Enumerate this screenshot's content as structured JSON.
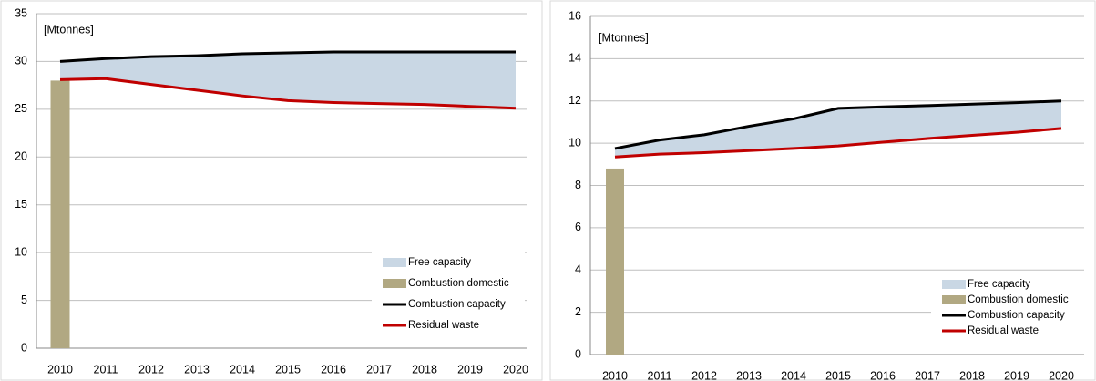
{
  "chart_data": [
    {
      "type": "combo",
      "annotation": "[Mtonnes]",
      "categories": [
        "2010",
        "2011",
        "2012",
        "2013",
        "2014",
        "2015",
        "2016",
        "2017",
        "2018",
        "2019",
        "2020"
      ],
      "ylim": [
        0,
        35
      ],
      "yticks": [
        0,
        5,
        10,
        15,
        20,
        25,
        30,
        35
      ],
      "grid": true,
      "legend": "lower right",
      "series": [
        {
          "name": "Free capacity",
          "type": "area",
          "stacked_on": "Residual waste",
          "color": "#c9d7e4",
          "values": [
            1.9,
            2.1,
            2.9,
            3.6,
            4.4,
            5.0,
            5.3,
            5.4,
            5.5,
            5.7,
            5.9
          ]
        },
        {
          "name": "Combustion domestic",
          "type": "bar",
          "color": "#b1a882",
          "values": [
            28,
            null,
            null,
            null,
            null,
            null,
            null,
            null,
            null,
            null,
            null
          ]
        },
        {
          "name": "Combustion capacity",
          "type": "line",
          "color": "#000000",
          "values": [
            30,
            30.3,
            30.5,
            30.6,
            30.8,
            30.9,
            31,
            31,
            31,
            31,
            31
          ]
        },
        {
          "name": "Residual waste",
          "type": "line",
          "color": "#c00000",
          "values": [
            28.1,
            28.2,
            27.6,
            27,
            26.4,
            25.9,
            25.7,
            25.6,
            25.5,
            25.3,
            25.1
          ]
        }
      ]
    },
    {
      "type": "combo",
      "annotation": "[Mtonnes]",
      "categories": [
        "2010",
        "2011",
        "2012",
        "2013",
        "2014",
        "2015",
        "2016",
        "2017",
        "2018",
        "2019",
        "2020"
      ],
      "ylim": [
        0,
        16
      ],
      "yticks": [
        0,
        2,
        4,
        6,
        8,
        10,
        12,
        14,
        16
      ],
      "grid": true,
      "legend": "lower right",
      "series": [
        {
          "name": "Free capacity",
          "type": "area",
          "stacked_on": "Residual waste",
          "color": "#c9d7e4",
          "values": [
            0.4,
            0.67,
            0.85,
            1.15,
            1.4,
            1.78,
            1.67,
            1.56,
            1.48,
            1.4,
            1.3
          ]
        },
        {
          "name": "Combustion domestic",
          "type": "bar",
          "color": "#b1a882",
          "values": [
            8.8,
            null,
            null,
            null,
            null,
            null,
            null,
            null,
            null,
            null,
            null
          ]
        },
        {
          "name": "Combustion capacity",
          "type": "line",
          "color": "#000000",
          "values": [
            9.75,
            10.15,
            10.4,
            10.8,
            11.15,
            11.65,
            11.72,
            11.78,
            11.85,
            11.92,
            12.0
          ]
        },
        {
          "name": "Residual waste",
          "type": "line",
          "color": "#c00000",
          "values": [
            9.35,
            9.48,
            9.55,
            9.65,
            9.75,
            9.87,
            10.05,
            10.22,
            10.37,
            10.52,
            10.7
          ]
        }
      ]
    }
  ]
}
